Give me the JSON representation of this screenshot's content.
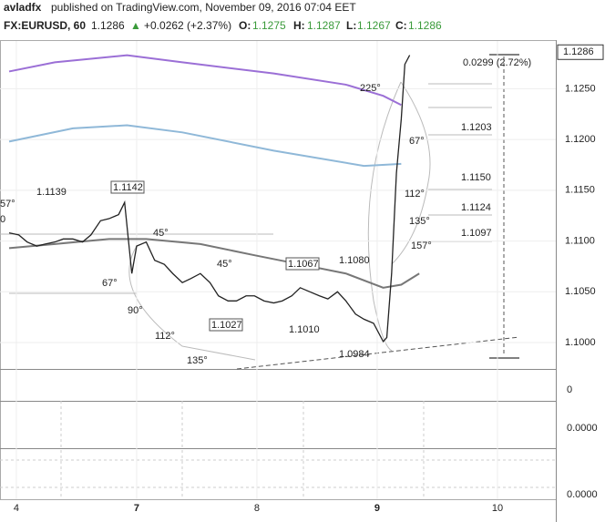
{
  "header": {
    "author": "avladfx",
    "published": "published on TradingView.com, November 09, 2016 07:04 EET",
    "symbol": "FX:EURUSD, 60",
    "last": "1.1286",
    "arrow": "▲",
    "change": "+0.0262 (+2.37%)",
    "o_label": "O:",
    "o": "1.1275",
    "h_label": "H:",
    "h": "1.1287",
    "l_label": "L:",
    "l": "1.1267",
    "c_label": "C:",
    "c": "1.1286"
  },
  "chart_data": {
    "type": "line",
    "xlim": [
      -0.136,
      4.485
    ],
    "xticks": [
      {
        "value": 0,
        "label": "4"
      },
      {
        "value": 1,
        "label": "7"
      },
      {
        "value": 2,
        "label": "8"
      },
      {
        "value": 3,
        "label": "9"
      },
      {
        "value": 4,
        "label": "10"
      }
    ],
    "ylim": [
      1.0974,
      1.1297
    ],
    "yticks": [
      {
        "value": 1.1,
        "label": "1.1000"
      },
      {
        "value": 1.105,
        "label": "1.1050"
      },
      {
        "value": 1.11,
        "label": "1.1100"
      },
      {
        "value": 1.115,
        "label": "1.1150"
      },
      {
        "value": 1.12,
        "label": "1.1200"
      },
      {
        "value": 1.125,
        "label": "1.1250"
      }
    ],
    "grid": true,
    "last_price": 1.1286,
    "series": [
      {
        "color": "#222222",
        "x": [
          -0.06,
          0.02,
          0.09,
          0.17,
          0.24,
          0.32,
          0.39,
          0.47,
          0.55,
          0.62,
          0.7,
          0.77,
          0.85,
          0.9,
          0.96,
          1.0,
          1.08,
          1.15,
          1.23,
          1.3,
          1.38,
          1.45,
          1.53,
          1.61,
          1.68,
          1.76,
          1.83,
          1.91,
          1.98,
          2.06,
          2.14,
          2.21,
          2.29,
          2.36,
          2.44,
          2.52,
          2.59,
          2.67,
          2.74,
          2.82,
          2.89,
          2.97,
          3.05,
          3.08,
          3.12,
          3.16,
          3.2,
          3.23,
          3.27
        ],
        "values": [
          1.1108,
          1.1106,
          1.1099,
          1.1095,
          1.1097,
          1.1099,
          1.1102,
          1.1102,
          1.1099,
          1.1106,
          1.112,
          1.1122,
          1.1126,
          1.1138,
          1.1068,
          1.1095,
          1.1099,
          1.1081,
          1.1077,
          1.1068,
          1.1059,
          1.1063,
          1.1068,
          1.1059,
          1.1046,
          1.1041,
          1.1041,
          1.1046,
          1.1046,
          1.1041,
          1.1039,
          1.1041,
          1.1046,
          1.1054,
          1.105,
          1.1046,
          1.1043,
          1.105,
          1.1041,
          1.1028,
          1.1023,
          1.1019,
          1.1001,
          1.1005,
          1.1068,
          1.1167,
          1.122,
          1.1274,
          1.1283
        ]
      },
      {
        "color": "#9b6fd6",
        "x": [
          -0.06,
          0.32,
          0.92,
          1.38,
          2.14,
          2.74,
          3.05,
          3.2
        ],
        "values": [
          1.1267,
          1.1276,
          1.1283,
          1.1276,
          1.1265,
          1.1254,
          1.1243,
          1.1234
        ]
      },
      {
        "color": "#8fb8d8",
        "x": [
          -0.06,
          0.47,
          0.92,
          1.38,
          2.14,
          2.89,
          3.2
        ],
        "values": [
          1.1198,
          1.1211,
          1.1214,
          1.1207,
          1.1189,
          1.1174,
          1.1176
        ]
      },
      {
        "color": "#777777",
        "x": [
          -0.06,
          0.32,
          0.77,
          1.08,
          1.53,
          1.98,
          2.36,
          2.74,
          3.05,
          3.2,
          3.35
        ],
        "values": [
          1.1093,
          1.1097,
          1.1102,
          1.1102,
          1.1097,
          1.1086,
          1.1077,
          1.1068,
          1.1054,
          1.1057,
          1.1068
        ]
      }
    ],
    "annotations": [
      "1.1139",
      "1.1142",
      "45°",
      "67°",
      "90°",
      "112°",
      "135°",
      "45°",
      "1.1027",
      "1.1010",
      "1.1067",
      "1.1080",
      "1.0984",
      "225°",
      "67°",
      "112°",
      "135°",
      "157°",
      "1.1203",
      "1.1150",
      "1.1124",
      "1.1097",
      "0.0299 (2.72%)",
      "57°",
      "0"
    ],
    "volume_axis": "0",
    "macd_axis": "0.0000",
    "osc_axis": "0.0000"
  }
}
